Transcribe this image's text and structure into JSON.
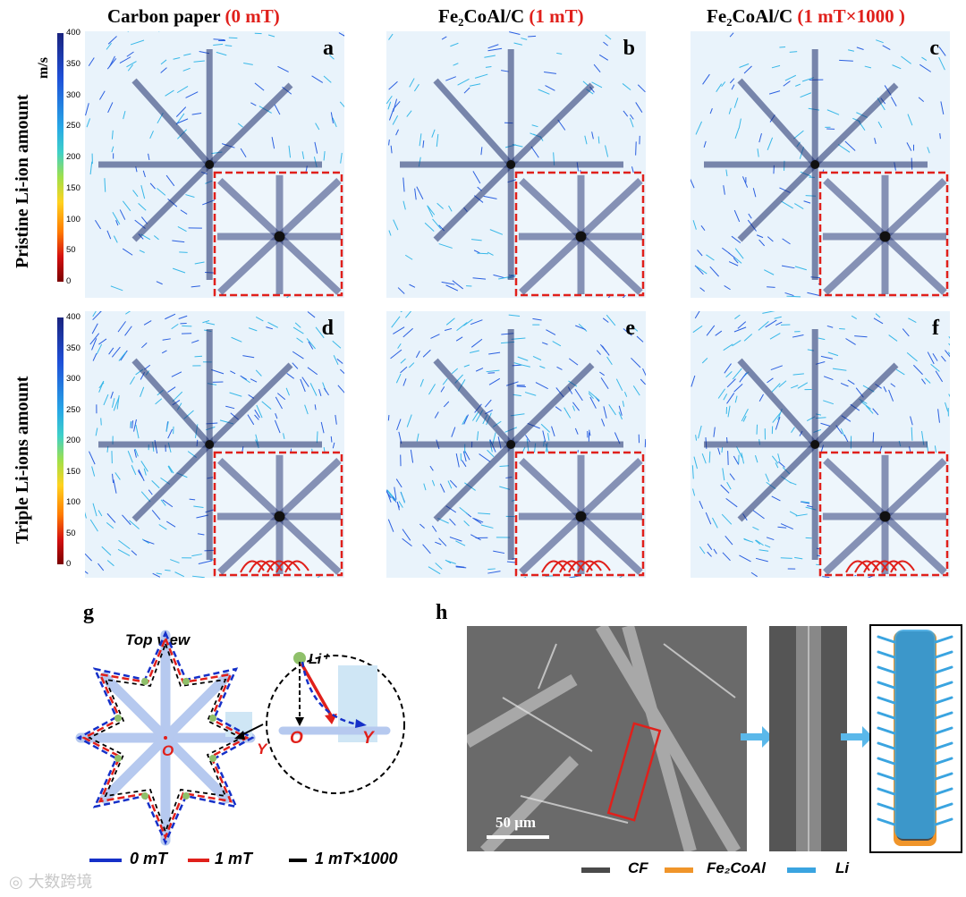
{
  "columns": [
    {
      "prefix": "Carbon paper",
      "suffix": "(0 mT)"
    },
    {
      "prefix": "Fe₂CoAl/C",
      "suffix": "(1 mT)"
    },
    {
      "prefix": "Fe₂CoAl/C",
      "suffix": "(1 mT×1000 )"
    }
  ],
  "rows": [
    "Pristine Li-ion amount",
    "Triple Li-ions amount"
  ],
  "colorbar": {
    "unit": "m/s",
    "ticks": [
      "400",
      "350",
      "300",
      "250",
      "200",
      "150",
      "100",
      "50",
      "0"
    ]
  },
  "panel_labels": [
    "a",
    "b",
    "c",
    "d",
    "e",
    "f"
  ],
  "panel_g": {
    "label": "g",
    "title": "Top view",
    "origin": "O",
    "axis": "Y",
    "ion": "Li⁺",
    "legend": [
      {
        "name": "0 mT",
        "color": "#1530c8"
      },
      {
        "name": "1 mT",
        "color": "#e0201b"
      },
      {
        "name": "1 mT×1000",
        "color": "#000000"
      }
    ]
  },
  "panel_h": {
    "label": "h",
    "scale_bar": "50 μm",
    "legend": [
      {
        "name": "CF",
        "color": "#4a4a4a"
      },
      {
        "name": "Fe₂CoAl",
        "color": "#f0952a"
      },
      {
        "name": "Li",
        "color": "#3aa4e0"
      }
    ]
  },
  "watermark": "大数跨境",
  "colors": {
    "accent_red": "#e0201b",
    "panel_bg": "#e9f3fb",
    "star_blue": "#1530c8"
  }
}
